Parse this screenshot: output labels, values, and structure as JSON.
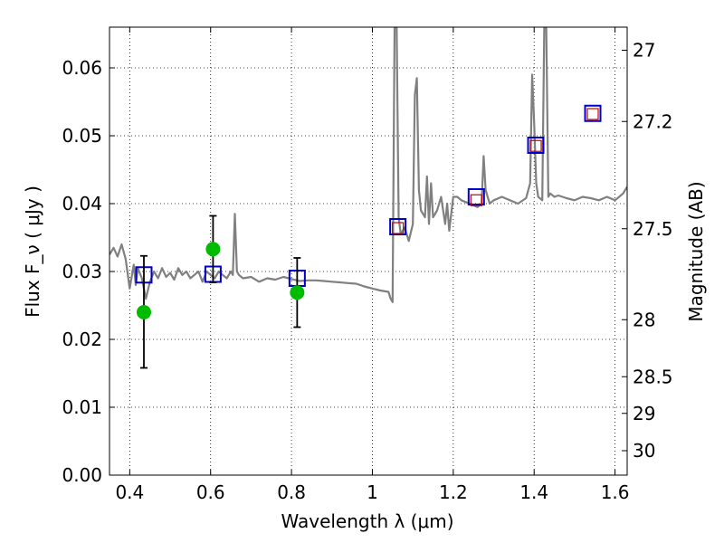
{
  "chart_data": {
    "type": "scatter",
    "xlabel": "Wavelength  λ (μm)",
    "ylabel": "Flux  F_ν  ( μJy )",
    "ylabel_right": "Magnitude (AB)",
    "xlim": [
      0.35,
      1.63
    ],
    "ylim": [
      0.0,
      0.066
    ],
    "grid": true,
    "x_ticks": [
      0.4,
      0.6,
      0.8,
      1.0,
      1.2,
      1.4,
      1.6
    ],
    "x_tick_labels": [
      "0.4",
      "0.6",
      "0.8",
      "1",
      "1.2",
      "1.4",
      "1.6"
    ],
    "y_ticks": [
      0.0,
      0.01,
      0.02,
      0.03,
      0.04,
      0.05,
      0.06
    ],
    "y_tick_labels": [
      "0.00",
      "0.01",
      "0.02",
      "0.03",
      "0.04",
      "0.05",
      "0.06"
    ],
    "right_ticks": [
      {
        "label": "27",
        "flux": 0.0626
      },
      {
        "label": "27.2",
        "flux": 0.0521
      },
      {
        "label": "27.5",
        "flux": 0.0363
      },
      {
        "label": "28",
        "flux": 0.0229
      },
      {
        "label": "28.5",
        "flux": 0.0145
      },
      {
        "label": "29",
        "flux": 0.0091
      },
      {
        "label": "30",
        "flux": 0.0036
      }
    ],
    "series": [
      {
        "kind": "model-spectrum",
        "color": "#808080",
        "x": [
          0.35,
          0.36,
          0.37,
          0.38,
          0.39,
          0.4,
          0.41,
          0.415,
          0.42,
          0.43,
          0.44,
          0.45,
          0.46,
          0.47,
          0.48,
          0.49,
          0.5,
          0.51,
          0.52,
          0.53,
          0.54,
          0.55,
          0.56,
          0.57,
          0.58,
          0.59,
          0.6,
          0.61,
          0.62,
          0.63,
          0.64,
          0.65,
          0.655,
          0.66,
          0.665,
          0.67,
          0.68,
          0.7,
          0.72,
          0.74,
          0.76,
          0.78,
          0.8,
          0.82,
          0.84,
          0.86,
          0.88,
          0.9,
          0.92,
          0.94,
          0.96,
          0.98,
          1.0,
          1.02,
          1.04,
          1.045,
          1.05,
          1.055,
          1.06,
          1.065,
          1.07,
          1.08,
          1.09,
          1.1,
          1.105,
          1.11,
          1.115,
          1.12,
          1.13,
          1.135,
          1.14,
          1.145,
          1.15,
          1.16,
          1.17,
          1.18,
          1.185,
          1.19,
          1.2,
          1.21,
          1.22,
          1.24,
          1.26,
          1.27,
          1.275,
          1.28,
          1.29,
          1.3,
          1.32,
          1.34,
          1.36,
          1.38,
          1.39,
          1.395,
          1.4,
          1.405,
          1.41,
          1.42,
          1.425,
          1.43,
          1.435,
          1.44,
          1.45,
          1.46,
          1.48,
          1.5,
          1.52,
          1.54,
          1.56,
          1.58,
          1.6,
          1.62,
          1.63
        ],
        "y": [
          0.0325,
          0.0335,
          0.0322,
          0.034,
          0.0318,
          0.0275,
          0.031,
          0.028,
          0.0305,
          0.029,
          0.026,
          0.0285,
          0.03,
          0.029,
          0.0305,
          0.0292,
          0.0298,
          0.0288,
          0.0305,
          0.0295,
          0.03,
          0.029,
          0.0295,
          0.03,
          0.0285,
          0.03,
          0.0295,
          0.029,
          0.03,
          0.0295,
          0.029,
          0.03,
          0.0295,
          0.0385,
          0.03,
          0.0295,
          0.029,
          0.0292,
          0.0285,
          0.029,
          0.0288,
          0.0292,
          0.0289,
          0.0286,
          0.0287,
          0.0287,
          0.0286,
          0.0285,
          0.0284,
          0.0283,
          0.0282,
          0.0278,
          0.0275,
          0.0272,
          0.027,
          0.026,
          0.0255,
          0.066,
          0.066,
          0.038,
          0.0355,
          0.0365,
          0.0345,
          0.037,
          0.056,
          0.0585,
          0.042,
          0.039,
          0.038,
          0.044,
          0.037,
          0.043,
          0.038,
          0.039,
          0.041,
          0.037,
          0.04,
          0.036,
          0.041,
          0.041,
          0.0405,
          0.04,
          0.0395,
          0.04,
          0.047,
          0.042,
          0.04,
          0.0405,
          0.041,
          0.0405,
          0.04,
          0.0408,
          0.043,
          0.059,
          0.052,
          0.043,
          0.041,
          0.0405,
          0.066,
          0.066,
          0.041,
          0.0415,
          0.041,
          0.0412,
          0.0408,
          0.0405,
          0.041,
          0.0408,
          0.0405,
          0.041,
          0.0405,
          0.0415,
          0.0425
        ]
      },
      {
        "kind": "observed",
        "color": "#00bb00",
        "points": [
          {
            "x": 0.435,
            "y": 0.024,
            "ylo": 0.0158,
            "yhi": 0.0323
          },
          {
            "x": 0.606,
            "y": 0.0333,
            "ylo": 0.0284,
            "yhi": 0.0382
          },
          {
            "x": 0.814,
            "y": 0.0269,
            "ylo": 0.0218,
            "yhi": 0.032
          }
        ]
      },
      {
        "kind": "model-synthetic",
        "color": "#0000cc",
        "points": [
          {
            "x": 0.435,
            "y": 0.0295
          },
          {
            "x": 0.606,
            "y": 0.0296
          },
          {
            "x": 0.814,
            "y": 0.029
          },
          {
            "x": 1.063,
            "y": 0.0366
          },
          {
            "x": 1.257,
            "y": 0.041
          },
          {
            "x": 1.404,
            "y": 0.0486
          },
          {
            "x": 1.545,
            "y": 0.0533
          }
        ]
      },
      {
        "kind": "model-synthetic-inner",
        "color": "#cc0000",
        "points": [
          {
            "x": 1.063,
            "y": 0.0364
          },
          {
            "x": 1.257,
            "y": 0.0405
          },
          {
            "x": 1.404,
            "y": 0.0485
          },
          {
            "x": 1.545,
            "y": 0.0532
          }
        ]
      }
    ]
  }
}
